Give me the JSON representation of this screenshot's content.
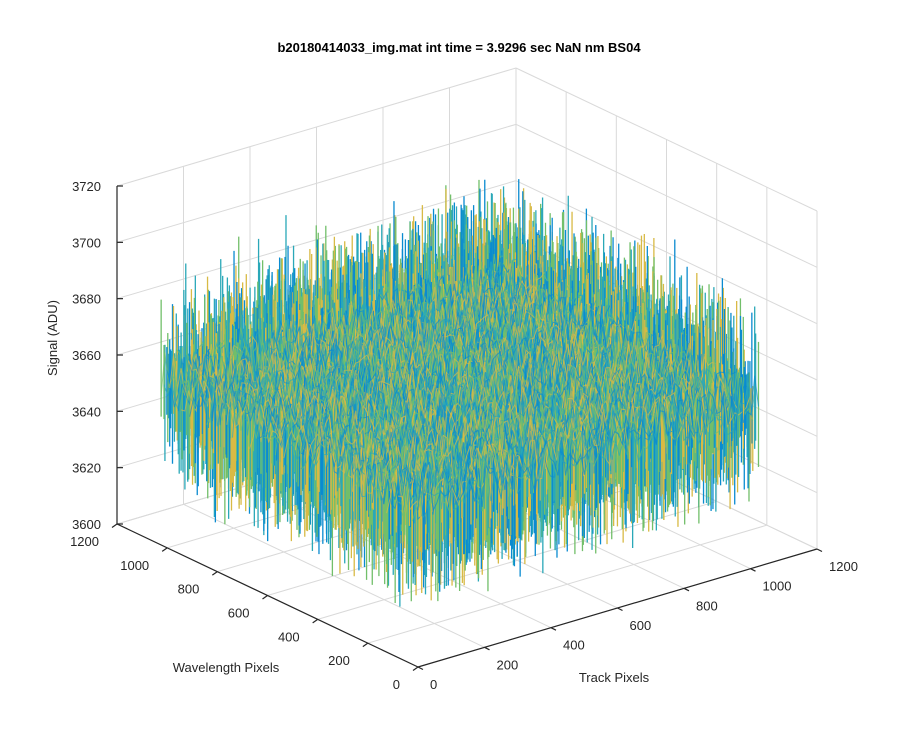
{
  "colors": {
    "background": "#ffffff",
    "grid": "#d9d9d9",
    "axis": "#262626",
    "surface_blue": "#0a8bd0",
    "surface_teal": "#2aa8b8",
    "surface_green": "#72bf6a",
    "surface_yellow": "#d8ba45"
  },
  "chart_data": {
    "type": "surface",
    "title": "b20180414033_img.mat int time = 3.9296 sec  NaN nm BS04",
    "xlabel": "Track Pixels",
    "ylabel": "Wavelength Pixels",
    "zlabel": "Signal (ADU)",
    "xlim": [
      0,
      1200
    ],
    "ylim": [
      0,
      1200
    ],
    "zlim": [
      3600,
      3720
    ],
    "xticks": [
      "0",
      "200",
      "400",
      "600",
      "800",
      "1000",
      "1200"
    ],
    "yticks": [
      "0",
      "200",
      "400",
      "600",
      "800",
      "1000",
      "1200"
    ],
    "zticks": [
      "3600",
      "3620",
      "3640",
      "3660",
      "3680",
      "3700",
      "3720"
    ],
    "surface_extent": {
      "x": [
        0,
        1024
      ],
      "y": [
        0,
        1024
      ]
    },
    "signal_mean": 3655,
    "signal_range": [
      3615,
      3710
    ],
    "grid": true,
    "view": "3d-box"
  }
}
